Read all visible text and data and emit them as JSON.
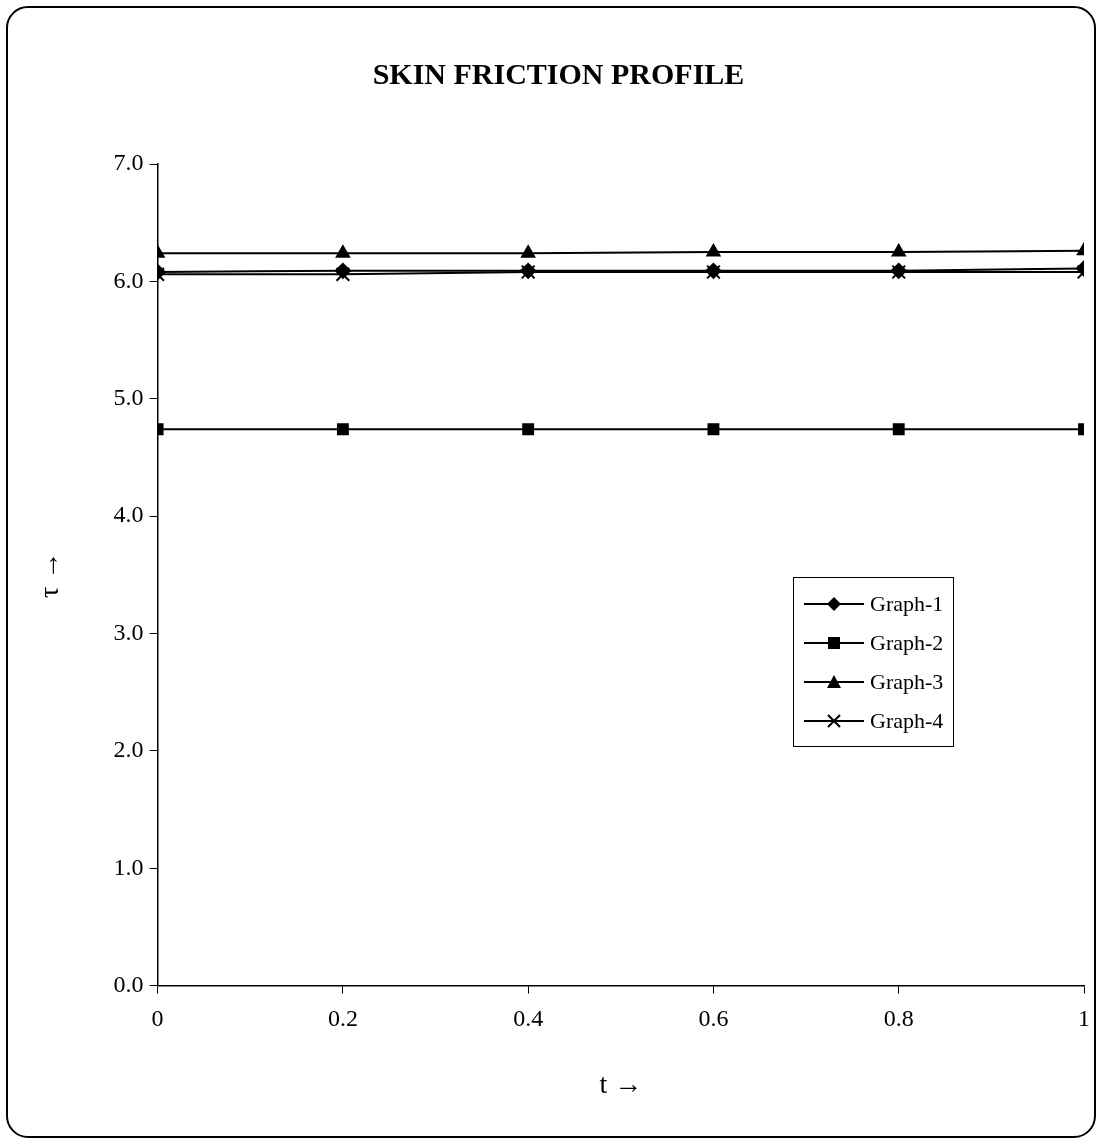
{
  "chart_data": {
    "type": "line",
    "title": "SKIN FRICTION PROFILE",
    "xlabel": "t →",
    "ylabel": "τ →",
    "x": [
      0,
      0.2,
      0.4,
      0.6,
      0.8,
      1
    ],
    "xlim": [
      0,
      1
    ],
    "xticks": [
      0,
      0.2,
      0.4,
      0.6,
      0.8,
      1
    ],
    "ylim": [
      0,
      7
    ],
    "yticks": [
      {
        "value": 0,
        "label": "0.0"
      },
      {
        "value": 1,
        "label": "1.0"
      },
      {
        "value": 2,
        "label": "2.0"
      },
      {
        "value": 3,
        "label": "3.0"
      },
      {
        "value": 4,
        "label": "4.0"
      },
      {
        "value": 5,
        "label": "5.0"
      },
      {
        "value": 6,
        "label": "6.0"
      },
      {
        "value": 7,
        "label": "7.0"
      }
    ],
    "grid": false,
    "legend": "right",
    "line_style": "solid",
    "series": [
      {
        "name": "Graph-1",
        "color": "#000000",
        "marker": "diamond",
        "values": [
          6.08,
          6.09,
          6.09,
          6.09,
          6.09,
          6.11
        ]
      },
      {
        "name": "Graph-2",
        "color": "#000000",
        "marker": "square",
        "values": [
          4.74,
          4.74,
          4.74,
          4.74,
          4.74,
          4.74
        ]
      },
      {
        "name": "Graph-3",
        "color": "#000000",
        "marker": "triangle",
        "values": [
          6.24,
          6.24,
          6.24,
          6.25,
          6.25,
          6.26
        ]
      },
      {
        "name": "Graph-4",
        "color": "#000000",
        "marker": "cross",
        "values": [
          6.06,
          6.06,
          6.08,
          6.08,
          6.08,
          6.08
        ]
      }
    ]
  }
}
